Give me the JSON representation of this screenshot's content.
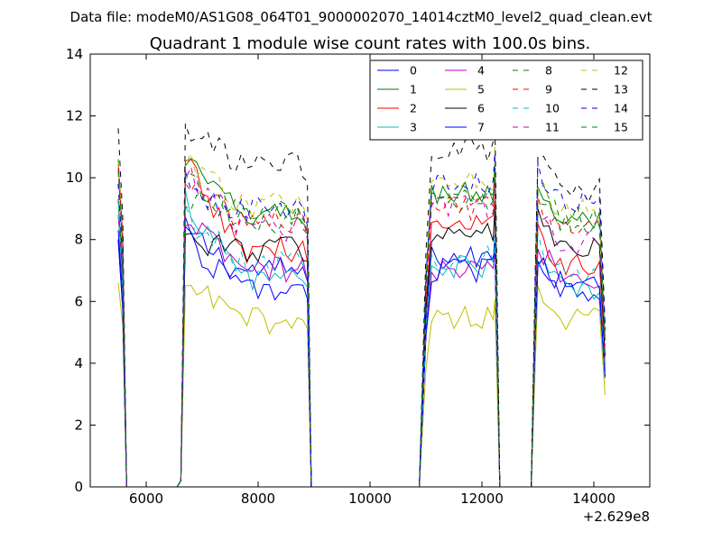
{
  "figure": {
    "suptitle": "Data file: modeM0/AS1G08_064T01_9000002070_14014cztM0_level2_quad_clean.evt"
  },
  "chart_data": {
    "type": "line",
    "title": "Quadrant 1 module wise count rates with 100.0s bins.",
    "xlabel": "",
    "ylabel": "",
    "x_offset_label": "+2.629e8",
    "xlim": [
      5000,
      15000
    ],
    "ylim": [
      0,
      14
    ],
    "xticks": [
      6000,
      8000,
      10000,
      12000,
      14000
    ],
    "yticks": [
      0,
      2,
      4,
      6,
      8,
      10,
      12,
      14
    ],
    "grid": false,
    "legend": {
      "placement": "upper-right",
      "columns": 4
    },
    "segments": [
      {
        "x_start": 5500,
        "x_end": 8900,
        "interior_start": 6700,
        "interior_end": 8800
      },
      {
        "x_start": 10900,
        "x_end": 12300,
        "interior_start": 11100,
        "interior_end": 12200
      },
      {
        "x_start": 12900,
        "x_end": 14200,
        "interior_start": 13000,
        "interior_end": 14200
      }
    ],
    "series": [
      {
        "name": "0",
        "color": "#0000ff",
        "dash": "solid",
        "levels": [
          8.3,
          7.0,
          7.4,
          6.4
        ]
      },
      {
        "name": "1",
        "color": "#008000",
        "dash": "solid",
        "levels": [
          10.6,
          8.8,
          9.5,
          8.6
        ]
      },
      {
        "name": "2",
        "color": "#ff0000",
        "dash": "solid",
        "levels": [
          10.5,
          7.7,
          8.4,
          7.2
        ]
      },
      {
        "name": "3",
        "color": "#00bfbf",
        "dash": "solid",
        "levels": [
          9.3,
          6.8,
          7.1,
          6.4
        ]
      },
      {
        "name": "4",
        "color": "#bf00bf",
        "dash": "solid",
        "levels": [
          8.8,
          7.0,
          7.0,
          6.8
        ]
      },
      {
        "name": "5",
        "color": "#bfbf00",
        "dash": "solid",
        "levels": [
          6.6,
          5.4,
          5.5,
          5.4
        ]
      },
      {
        "name": "6",
        "color": "#000000",
        "dash": "solid",
        "levels": [
          8.0,
          7.7,
          8.2,
          7.7
        ]
      },
      {
        "name": "7",
        "color": "#0000ff",
        "dash": "solid",
        "levels": [
          8.0,
          6.4,
          7.0,
          6.5
        ]
      },
      {
        "name": "8",
        "color": "#008000",
        "dash": "dashed",
        "levels": [
          9.3,
          8.9,
          9.2,
          8.7
        ]
      },
      {
        "name": "9",
        "color": "#ff0000",
        "dash": "dashed",
        "levels": [
          9.8,
          8.6,
          9.0,
          8.3
        ]
      },
      {
        "name": "10",
        "color": "#00bfbf",
        "dash": "dashed",
        "levels": [
          8.8,
          7.3,
          7.4,
          6.9
        ]
      },
      {
        "name": "11",
        "color": "#bf00bf",
        "dash": "dashed",
        "levels": [
          10.3,
          8.4,
          9.1,
          7.9
        ]
      },
      {
        "name": "12",
        "color": "#bfbf00",
        "dash": "dashed",
        "levels": [
          10.5,
          9.1,
          10.0,
          8.9
        ]
      },
      {
        "name": "13",
        "color": "#000000",
        "dash": "dashed",
        "levels": [
          11.6,
          10.4,
          10.9,
          9.6
        ]
      },
      {
        "name": "14",
        "color": "#0000ff",
        "dash": "dashed",
        "levels": [
          9.8,
          8.9,
          9.8,
          9.2
        ]
      },
      {
        "name": "15",
        "color": "#008000",
        "dash": "dashed",
        "levels": [
          10.2,
          8.6,
          9.3,
          8.5
        ]
      }
    ]
  }
}
